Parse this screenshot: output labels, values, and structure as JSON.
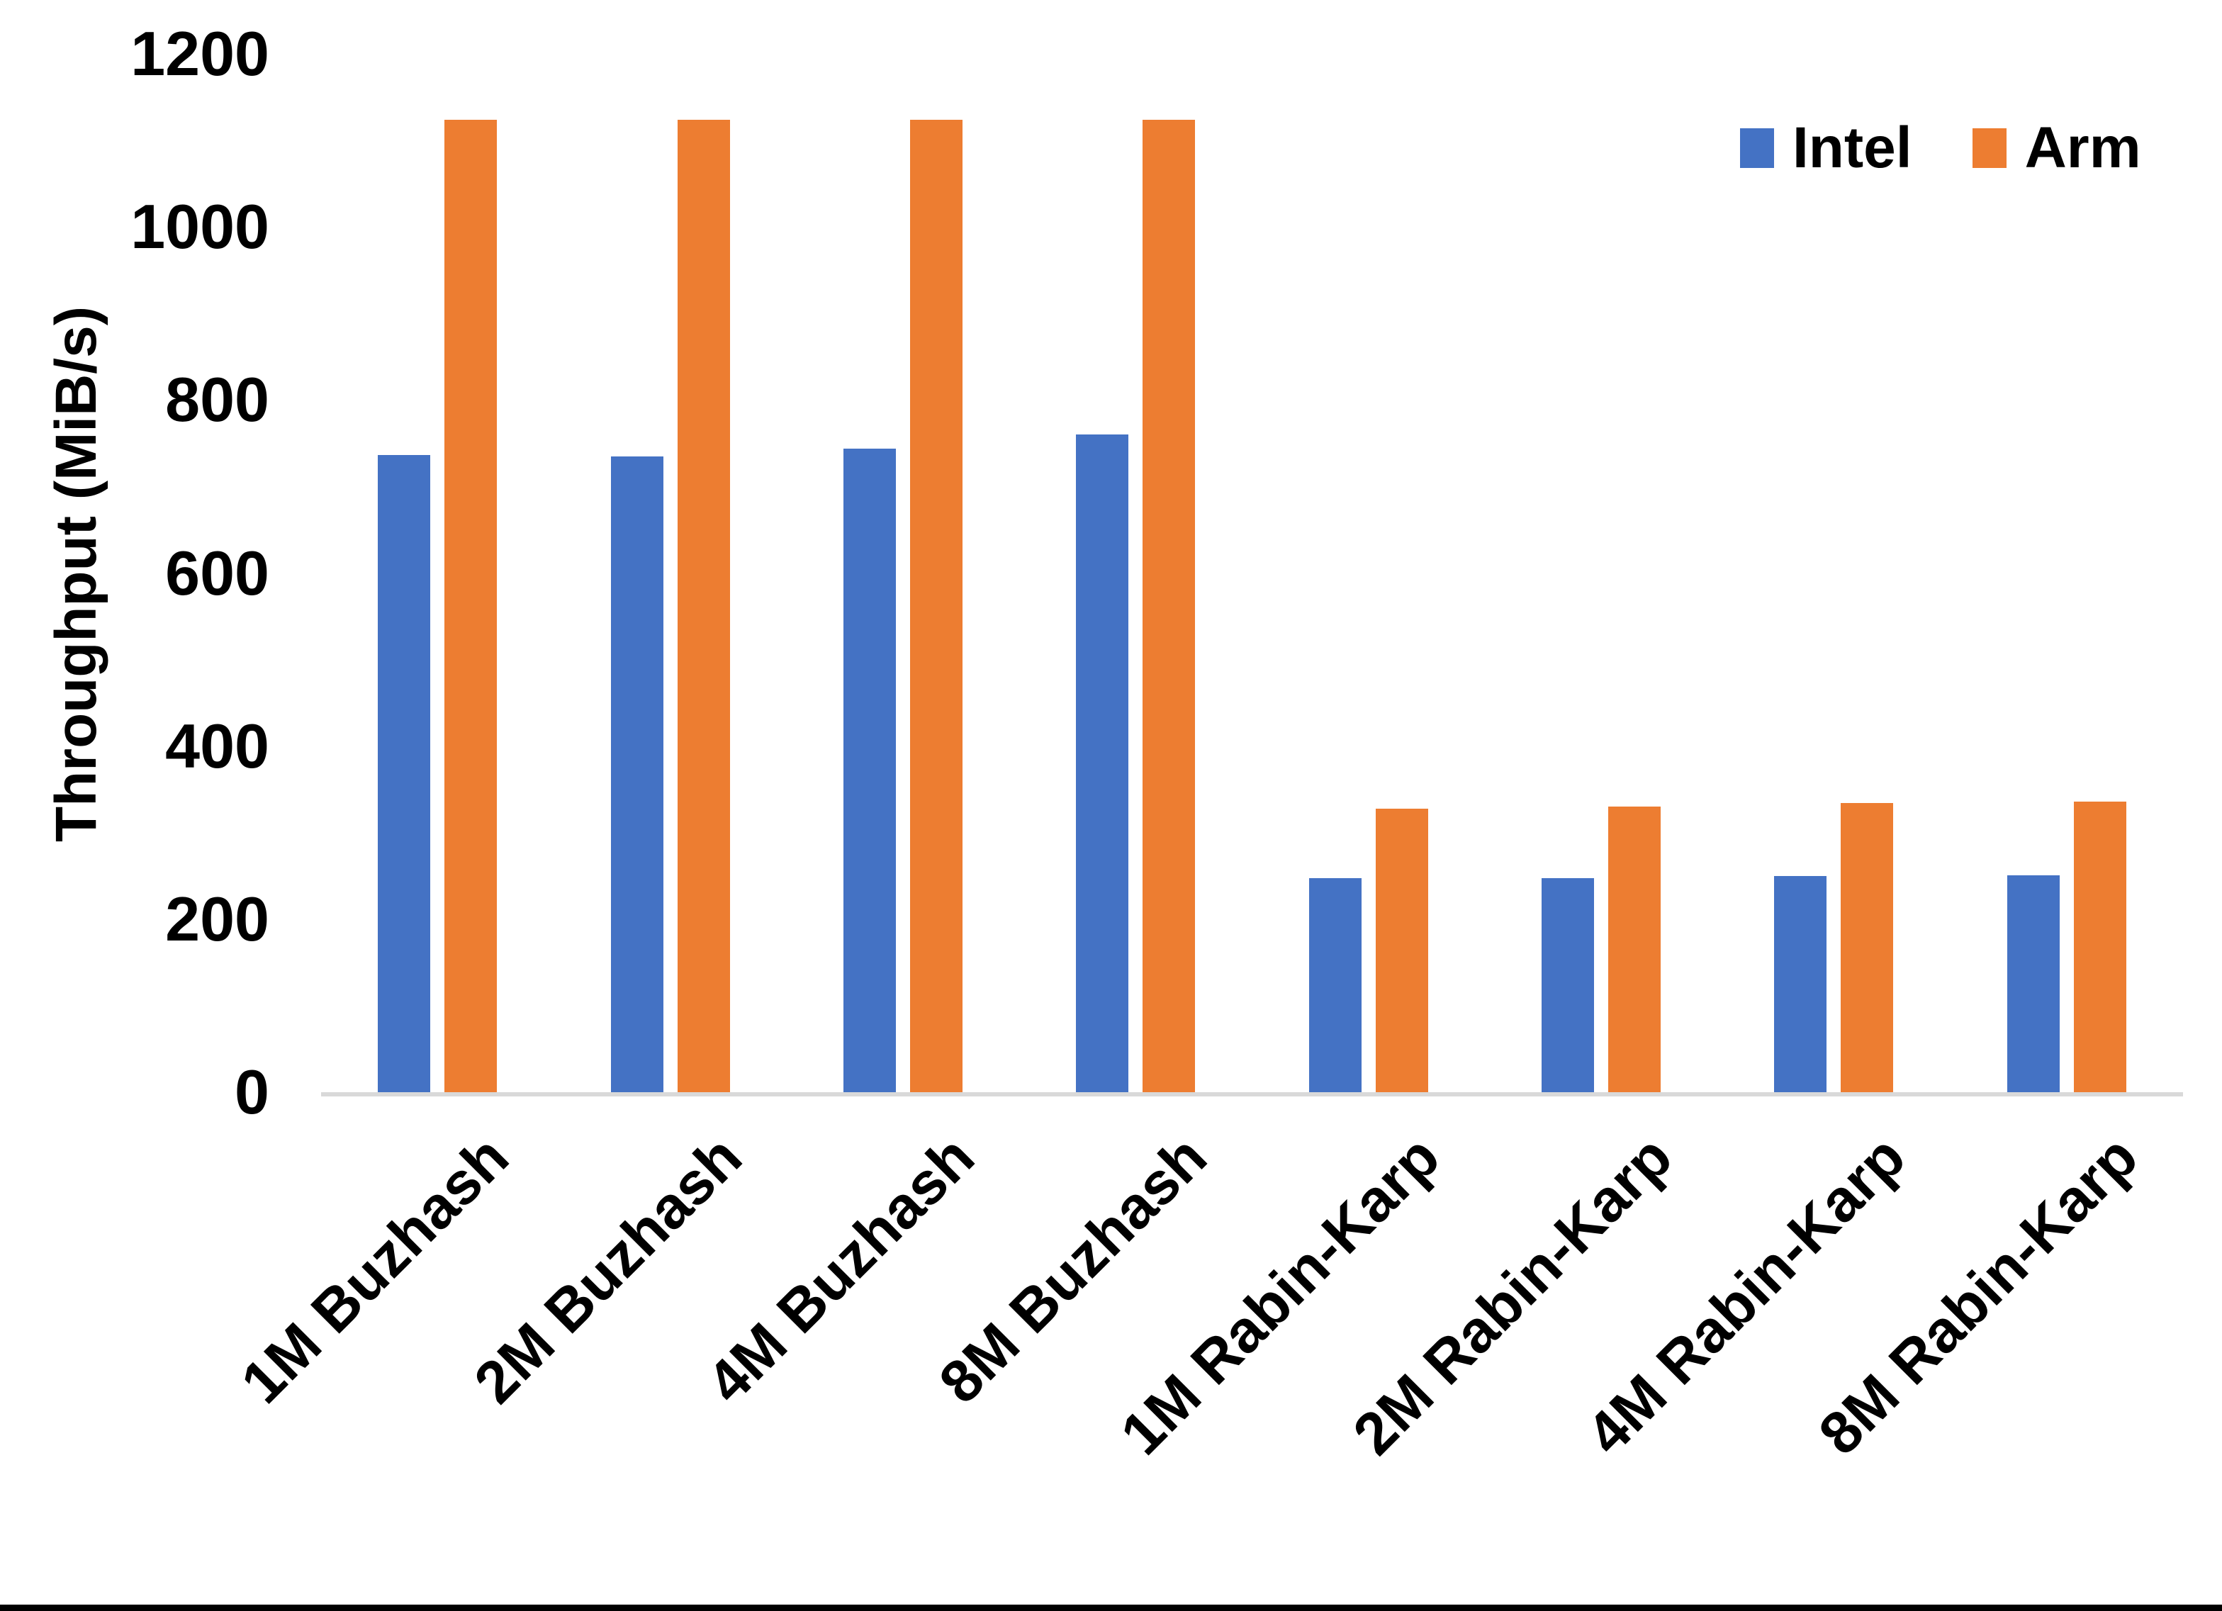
{
  "chart_data": {
    "type": "bar",
    "title": "",
    "xlabel": "",
    "ylabel": "Throughput (MiB/s)",
    "ylim": [
      0,
      1200
    ],
    "yticks": [
      0,
      200,
      400,
      600,
      800,
      1000,
      1200
    ],
    "grid": false,
    "legend_position": "top-right",
    "categories": [
      "1M Buzhash",
      "2M Buzhash",
      "4M Buzhash",
      "8M Buzhash",
      "1M Rabin-Karp",
      "2M Rabin-Karp",
      "4M Rabin-Karp",
      "8M Rabin-Karp"
    ],
    "series": [
      {
        "name": "Intel",
        "color": "#4472C4",
        "values": [
          736,
          735,
          744,
          760,
          247,
          247,
          250,
          251
        ]
      },
      {
        "name": "Arm",
        "color": "#ED7D31",
        "values": [
          1124,
          1124,
          1124,
          1124,
          328,
          330,
          334,
          336
        ]
      }
    ]
  },
  "colors": {
    "axis_line": "#D9D9D9",
    "text": "#000000",
    "background": "#FFFFFF",
    "bottom_bar": "#000000"
  }
}
